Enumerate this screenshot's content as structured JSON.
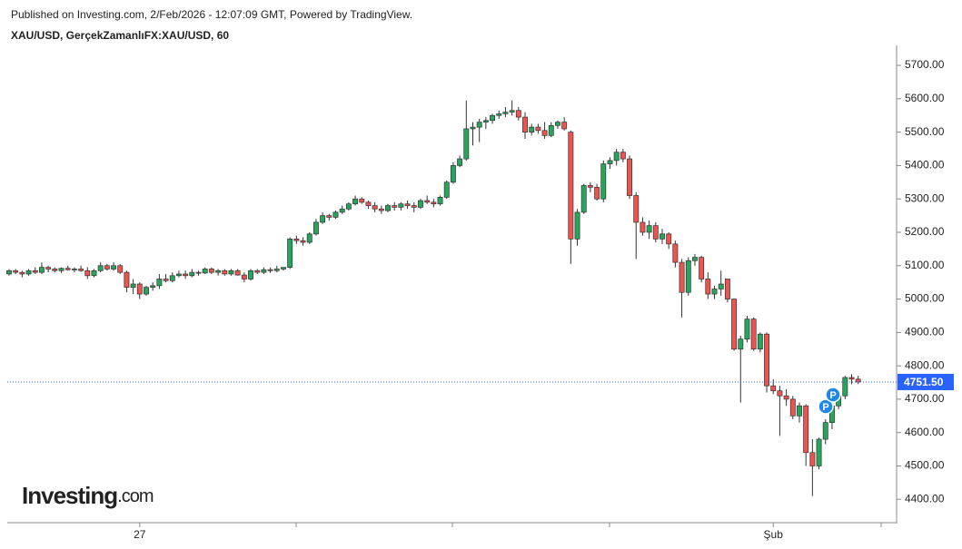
{
  "chart_data": {
    "type": "candlestick",
    "header": "Published on Investing.com, 2/Feb/2026 - 12:07:09 GMT, Powered by TradingView.",
    "title": "XAU/USD, GerçekZamanlıFX:XAU/USD, 60",
    "logo": "Investing",
    "logo_suffix": ".com",
    "markers": [
      "P",
      "P"
    ],
    "up_color": "#26a65b",
    "down_color": "#ef5350",
    "categories": [
      null,
      null,
      null,
      null,
      null,
      null,
      null,
      null,
      null,
      null,
      null,
      null,
      null,
      null,
      null,
      null,
      null,
      null,
      null,
      null,
      "27",
      null,
      null,
      null,
      null,
      null,
      null,
      null,
      null,
      null,
      null,
      null,
      null,
      null,
      null,
      null,
      null,
      null,
      null,
      null,
      null,
      null,
      null,
      null,
      null,
      null,
      null,
      null,
      null,
      null,
      null,
      null,
      null,
      null,
      null,
      null,
      null,
      null,
      null,
      null,
      null,
      null,
      null,
      null,
      null,
      null,
      null,
      null,
      null,
      null,
      null,
      null,
      null,
      null,
      null,
      null,
      null,
      null,
      null,
      null,
      null,
      null,
      null,
      null,
      null,
      null,
      null,
      null,
      null,
      null,
      null,
      null,
      null,
      null,
      null,
      null,
      null,
      null,
      null,
      null,
      null,
      null,
      null,
      null,
      null,
      null,
      null,
      null,
      null,
      null,
      null,
      null,
      null,
      null,
      null,
      null,
      null,
      "Şub",
      null,
      null,
      null,
      null,
      null,
      null,
      null,
      null,
      null,
      null,
      null,
      null,
      null
    ],
    "open": [
      5075,
      5085,
      5080,
      5075,
      5085,
      5080,
      5095,
      5090,
      5085,
      5092,
      5088,
      5090,
      5085,
      5070,
      5085,
      5100,
      5090,
      5100,
      5080,
      5035,
      5045,
      5015,
      5035,
      5040,
      5060,
      5055,
      5070,
      5075,
      5070,
      5080,
      5078,
      5090,
      5080,
      5085,
      5075,
      5085,
      5072,
      5060,
      5085,
      5080,
      5088,
      5085,
      5090,
      5095,
      5180,
      5175,
      5170,
      5195,
      5230,
      5250,
      5245,
      5260,
      5270,
      5285,
      5300,
      5290,
      5280,
      5270,
      5265,
      5280,
      5275,
      5285,
      5280,
      5275,
      5295,
      5290,
      5285,
      5305,
      5350,
      5400,
      5420,
      5510,
      5515,
      5530,
      5535,
      5550,
      5555,
      5560,
      5565,
      5545,
      5500,
      5515,
      5505,
      5490,
      5520,
      5530,
      5500,
      5180,
      5260,
      5340,
      5335,
      5300,
      5405,
      5415,
      5440,
      5420,
      5310,
      5230,
      5200,
      5220,
      5180,
      5195,
      5165,
      5110,
      5020,
      5115,
      5125,
      5060,
      5015,
      5030,
      5060,
      5000,
      4850,
      4880,
      4940,
      4850,
      4895,
      4740,
      4725,
      4710,
      4700,
      4650,
      4680,
      4540,
      4500,
      4580,
      4630,
      4680,
      4710,
      4765,
      4760
    ],
    "high": [
      5090,
      5090,
      5085,
      5090,
      5095,
      5110,
      5100,
      5095,
      5095,
      5100,
      5095,
      5100,
      5095,
      5090,
      5110,
      5105,
      5110,
      5105,
      5085,
      5060,
      5050,
      5040,
      5050,
      5075,
      5075,
      5080,
      5085,
      5085,
      5090,
      5085,
      5095,
      5095,
      5090,
      5090,
      5090,
      5090,
      5080,
      5090,
      5090,
      5095,
      5095,
      5100,
      5095,
      5185,
      5190,
      5185,
      5200,
      5240,
      5260,
      5255,
      5265,
      5280,
      5290,
      5310,
      5305,
      5295,
      5290,
      5280,
      5285,
      5290,
      5290,
      5295,
      5290,
      5300,
      5310,
      5300,
      5310,
      5355,
      5410,
      5430,
      5595,
      5530,
      5540,
      5545,
      5555,
      5565,
      5575,
      5595,
      5575,
      5560,
      5525,
      5525,
      5530,
      5530,
      5535,
      5545,
      5505,
      5270,
      5345,
      5350,
      5345,
      5415,
      5425,
      5450,
      5450,
      5430,
      5320,
      5245,
      5235,
      5230,
      5210,
      5200,
      5175,
      5120,
      5125,
      5135,
      5130,
      5080,
      5040,
      5085,
      5060,
      5000,
      4890,
      4950,
      4945,
      4900,
      4900,
      4760,
      4740,
      4730,
      4710,
      4690,
      4685,
      4580,
      4585,
      4640,
      4690,
      4720,
      4770,
      4775,
      4770
    ],
    "low": [
      5070,
      5075,
      5065,
      5070,
      5075,
      5075,
      5080,
      5080,
      5078,
      5085,
      5080,
      5082,
      5060,
      5065,
      5080,
      5085,
      5085,
      5075,
      5020,
      5015,
      5000,
      5010,
      5025,
      5030,
      5050,
      5050,
      5065,
      5060,
      5065,
      5070,
      5075,
      5075,
      5070,
      5070,
      5070,
      5070,
      5050,
      5055,
      5075,
      5075,
      5078,
      5080,
      5085,
      5090,
      5165,
      5160,
      5165,
      5190,
      5225,
      5235,
      5240,
      5255,
      5265,
      5280,
      5285,
      5270,
      5260,
      5255,
      5260,
      5265,
      5265,
      5270,
      5260,
      5270,
      5285,
      5275,
      5280,
      5300,
      5345,
      5395,
      5415,
      5460,
      5470,
      5510,
      5525,
      5540,
      5545,
      5550,
      5535,
      5480,
      5490,
      5495,
      5480,
      5485,
      5510,
      5505,
      5105,
      5160,
      5255,
      5320,
      5295,
      5290,
      5390,
      5400,
      5410,
      5300,
      5120,
      5190,
      5180,
      5170,
      5165,
      5150,
      5095,
      4945,
      5010,
      5100,
      5050,
      5000,
      5000,
      5010,
      4990,
      4845,
      4690,
      4870,
      4845,
      4840,
      4720,
      4715,
      4590,
      4680,
      4640,
      4630,
      4500,
      4410,
      4490,
      4565,
      4610,
      4670,
      4700,
      4745,
      4745
    ],
    "close": [
      5085,
      5080,
      5075,
      5085,
      5080,
      5095,
      5090,
      5085,
      5092,
      5088,
      5090,
      5085,
      5070,
      5085,
      5100,
      5090,
      5100,
      5080,
      5035,
      5045,
      5015,
      5035,
      5040,
      5060,
      5055,
      5070,
      5075,
      5070,
      5080,
      5078,
      5090,
      5080,
      5085,
      5075,
      5085,
      5072,
      5060,
      5085,
      5080,
      5088,
      5085,
      5090,
      5095,
      5180,
      5175,
      5170,
      5195,
      5230,
      5250,
      5245,
      5260,
      5270,
      5285,
      5300,
      5290,
      5280,
      5270,
      5265,
      5280,
      5275,
      5285,
      5280,
      5275,
      5295,
      5290,
      5285,
      5305,
      5350,
      5400,
      5420,
      5510,
      5515,
      5530,
      5535,
      5550,
      5555,
      5560,
      5565,
      5545,
      5500,
      5515,
      5505,
      5490,
      5520,
      5530,
      5510,
      5180,
      5260,
      5340,
      5335,
      5300,
      5405,
      5415,
      5440,
      5420,
      5310,
      5230,
      5200,
      5220,
      5180,
      5195,
      5165,
      5110,
      5020,
      5115,
      5125,
      5060,
      5015,
      5030,
      5045,
      5000,
      4850,
      4880,
      4940,
      4850,
      4895,
      4740,
      4725,
      4710,
      4700,
      4650,
      4680,
      4540,
      4500,
      4580,
      4630,
      4680,
      4710,
      4765,
      4760,
      4751.5
    ],
    "last_price": {
      "value": 4751.5,
      "label": "4751.50"
    },
    "ylim": [
      4330,
      5760
    ],
    "yticks": [
      {
        "value": 4400,
        "label": "4400.00"
      },
      {
        "value": 4500,
        "label": "4500.00"
      },
      {
        "value": 4600,
        "label": "4600.00"
      },
      {
        "value": 4700,
        "label": "4700.00"
      },
      {
        "value": 4800,
        "label": "4800.00"
      },
      {
        "value": 4900,
        "label": "4900.00"
      },
      {
        "value": 5000,
        "label": "5000.00"
      },
      {
        "value": 5100,
        "label": "5100.00"
      },
      {
        "value": 5200,
        "label": "5200.00"
      },
      {
        "value": 5300,
        "label": "5300.00"
      },
      {
        "value": 5400,
        "label": "5400.00"
      },
      {
        "value": 5500,
        "label": "5500.00"
      },
      {
        "value": 5600,
        "label": "5600.00"
      },
      {
        "value": 5700,
        "label": "5700.00"
      }
    ]
  }
}
